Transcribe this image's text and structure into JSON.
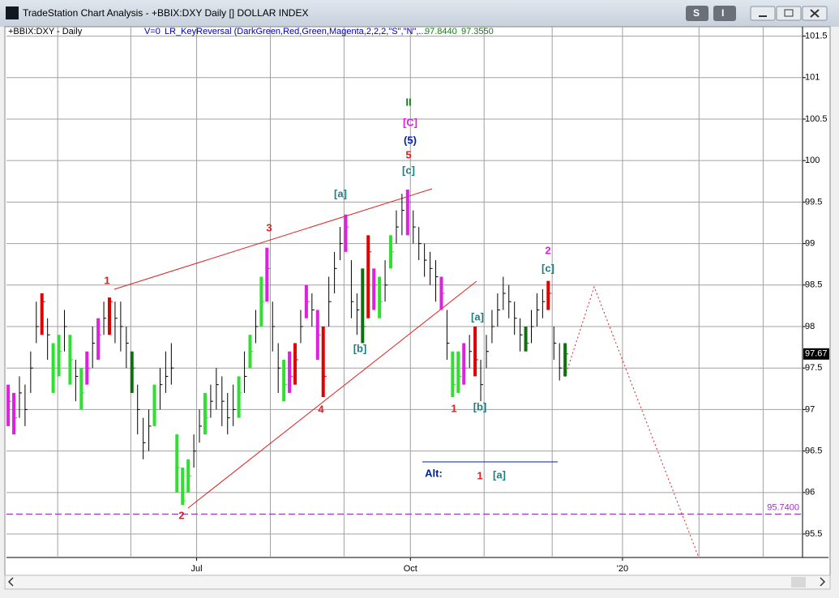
{
  "window": {
    "title": "TradeStation Chart Analysis - +BBIX:DXY Daily [] DOLLAR INDEX",
    "buttons": [
      "S",
      "I"
    ]
  },
  "header": {
    "symbol": "+BBIX:DXY - Daily",
    "volume": "V=0",
    "indicator": "LR_KeyReversal (DarkGreen,Red,Green,Magenta,2,2,2,\"S\",\"N\",...",
    "value1": "97.8440",
    "value2": "97.3550"
  },
  "chart_data": {
    "type": "ohlc",
    "xlim": [
      -0.3,
      141.2
    ],
    "xticks": [
      {
        "value": 33.5,
        "label": "Jul"
      },
      {
        "value": 71.5,
        "label": "Oct"
      },
      {
        "value": 109.2,
        "label": "'20"
      }
    ],
    "xgrid": [
      8.8,
      21.8,
      33.5,
      46.6,
      59.7,
      71.5,
      84.6,
      96.7,
      109.2,
      122.8,
      134.2
    ],
    "ylim": [
      95.217,
      101.613
    ],
    "yticks": [
      95.5,
      96,
      96.5,
      97,
      97.5,
      98,
      98.5,
      99,
      99.5,
      100,
      100.5,
      101,
      101.5
    ],
    "grid": true,
    "color": "#000000",
    "high": [
      97.3,
      97.2,
      97.4,
      97.3,
      97.7,
      98.3,
      98.4,
      98.1,
      97.8,
      97.9,
      98.2,
      97.9,
      97.6,
      97.5,
      97.7,
      98.0,
      98.1,
      98.3,
      98.35,
      98.3,
      98.3,
      98.0,
      97.7,
      97.3,
      96.9,
      97.0,
      97.3,
      97.5,
      97.7,
      97.8,
      96.7,
      96.3,
      96.4,
      96.7,
      97.0,
      97.2,
      97.3,
      97.5,
      97.4,
      97.2,
      97.3,
      97.4,
      97.7,
      97.9,
      98.2,
      98.6,
      98.95,
      98.3,
      97.8,
      97.6,
      97.7,
      97.8,
      98.2,
      98.5,
      98.4,
      98.2,
      98.0,
      98.6,
      98.9,
      99.2,
      99.35,
      98.8,
      98.4,
      98.7,
      99.1,
      98.7,
      98.6,
      98.8,
      99.1,
      99.4,
      99.6,
      99.65,
      99.4,
      99.2,
      99.0,
      98.9,
      98.8,
      98.6,
      98.2,
      97.7,
      97.7,
      97.8,
      97.9,
      98.0,
      97.6,
      97.9,
      98.2,
      98.4,
      98.6,
      98.5,
      98.3,
      98.1,
      98.0,
      98.2,
      98.4,
      98.45,
      98.55,
      98.0,
      97.8,
      97.8
    ],
    "low": [
      96.8,
      96.7,
      96.9,
      96.8,
      97.2,
      97.8,
      97.9,
      97.6,
      97.2,
      97.4,
      97.7,
      97.3,
      97.1,
      97.0,
      97.3,
      97.5,
      97.6,
      97.9,
      97.9,
      97.8,
      97.7,
      97.5,
      97.2,
      96.7,
      96.4,
      96.5,
      96.8,
      97.0,
      97.2,
      97.3,
      96.0,
      95.85,
      96.0,
      96.3,
      96.6,
      96.7,
      96.9,
      97.0,
      96.8,
      96.7,
      96.8,
      96.9,
      97.2,
      97.5,
      97.8,
      98.0,
      98.3,
      97.7,
      97.2,
      97.1,
      97.2,
      97.3,
      97.8,
      98.1,
      98.0,
      97.6,
      97.15,
      98.0,
      98.4,
      98.8,
      98.9,
      98.1,
      97.9,
      97.8,
      98.1,
      98.2,
      98.1,
      98.3,
      98.7,
      99.0,
      99.1,
      99.1,
      99.0,
      98.8,
      98.6,
      98.5,
      98.3,
      98.2,
      97.6,
      97.15,
      97.2,
      97.3,
      97.5,
      97.4,
      97.1,
      97.5,
      97.8,
      98.0,
      98.2,
      98.1,
      97.9,
      97.7,
      97.7,
      97.8,
      98.0,
      98.1,
      98.2,
      97.6,
      97.35,
      97.4
    ],
    "close": [
      97.1,
      96.9,
      97.2,
      97.0,
      97.5,
      98.0,
      98.3,
      97.9,
      97.5,
      97.7,
      98.0,
      97.6,
      97.4,
      97.2,
      97.5,
      97.8,
      97.9,
      98.1,
      98.3,
      98.1,
      98.0,
      97.8,
      97.5,
      97.0,
      96.6,
      96.8,
      97.0,
      97.3,
      97.4,
      97.5,
      96.3,
      95.9,
      96.2,
      96.5,
      96.8,
      96.9,
      97.1,
      97.3,
      97.1,
      96.9,
      97.0,
      97.2,
      97.4,
      97.7,
      98.0,
      98.3,
      98.7,
      98.0,
      97.5,
      97.3,
      97.4,
      97.6,
      98.0,
      98.3,
      98.2,
      97.9,
      97.4,
      98.3,
      98.7,
      99.0,
      99.2,
      98.3,
      98.2,
      98.0,
      98.9,
      98.5,
      98.3,
      98.5,
      98.9,
      99.2,
      99.4,
      99.5,
      99.2,
      99.0,
      98.8,
      98.7,
      98.6,
      98.4,
      97.8,
      97.3,
      97.4,
      97.5,
      97.7,
      97.6,
      97.3,
      97.7,
      98.0,
      98.2,
      98.4,
      98.3,
      98.1,
      97.9,
      97.8,
      98.0,
      98.2,
      98.3,
      98.4,
      97.8,
      97.5,
      97.67
    ],
    "highlights": [
      {
        "index": 0,
        "color": "#e020e0"
      },
      {
        "index": 1,
        "color": "#e020e0"
      },
      {
        "index": 6,
        "color": "#e00000"
      },
      {
        "index": 8,
        "color": "#30e030"
      },
      {
        "index": 9,
        "color": "#30e030"
      },
      {
        "index": 11,
        "color": "#30e030"
      },
      {
        "index": 13,
        "color": "#30e030"
      },
      {
        "index": 14,
        "color": "#e020e0"
      },
      {
        "index": 16,
        "color": "#e020e0"
      },
      {
        "index": 18,
        "color": "#e00000"
      },
      {
        "index": 22,
        "color": "#107010"
      },
      {
        "index": 26,
        "color": "#30e030"
      },
      {
        "index": 30,
        "color": "#30e030"
      },
      {
        "index": 31,
        "color": "#30e030"
      },
      {
        "index": 32,
        "color": "#30e030"
      },
      {
        "index": 35,
        "color": "#30e030"
      },
      {
        "index": 41,
        "color": "#30e030"
      },
      {
        "index": 43,
        "color": "#30e030"
      },
      {
        "index": 45,
        "color": "#30e030"
      },
      {
        "index": 46,
        "color": "#e020e0"
      },
      {
        "index": 49,
        "color": "#30e030"
      },
      {
        "index": 50,
        "color": "#e020e0"
      },
      {
        "index": 51,
        "color": "#e00000"
      },
      {
        "index": 53,
        "color": "#e020e0"
      },
      {
        "index": 55,
        "color": "#e020e0"
      },
      {
        "index": 56,
        "color": "#e00000"
      },
      {
        "index": 60,
        "color": "#e020e0"
      },
      {
        "index": 63,
        "color": "#107010"
      },
      {
        "index": 64,
        "color": "#e00000"
      },
      {
        "index": 65,
        "color": "#e020e0"
      },
      {
        "index": 66,
        "color": "#30e030"
      },
      {
        "index": 68,
        "color": "#30e030"
      },
      {
        "index": 71,
        "color": "#e020e0"
      },
      {
        "index": 77,
        "color": "#e020e0"
      },
      {
        "index": 79,
        "color": "#30e030"
      },
      {
        "index": 80,
        "color": "#30e030"
      },
      {
        "index": 81,
        "color": "#e020e0"
      },
      {
        "index": 83,
        "color": "#e00000"
      },
      {
        "index": 92,
        "color": "#107010"
      },
      {
        "index": 96,
        "color": "#e00000"
      },
      {
        "index": 99,
        "color": "#107010"
      }
    ],
    "reference_line": {
      "value": 95.74,
      "label": "95.7400",
      "color": "#9a30c0"
    },
    "last_price": {
      "value": 97.67,
      "label": "97.67"
    },
    "annotations": [
      {
        "text": "1",
        "color": "#e02020"
      },
      {
        "text": "3",
        "color": "#e02020"
      },
      {
        "text": "[a]",
        "color": "#208080"
      },
      {
        "text": "5",
        "color": "#e02020"
      },
      {
        "text": "[c]",
        "color": "#208080"
      },
      {
        "text": "(5)",
        "color": "#0020c0"
      },
      {
        "text": "[C]",
        "color": "#e020e0"
      },
      {
        "text": "II",
        "color": "#108010"
      },
      {
        "text": "4",
        "color": "#e02020"
      },
      {
        "text": "2",
        "color": "#e02020"
      },
      {
        "text": "[b]",
        "color": "#208080"
      },
      {
        "text": "1",
        "color": "#e02020"
      },
      {
        "text": "[a]",
        "color": "#208080"
      },
      {
        "text": "[b]",
        "color": "#208080"
      },
      {
        "text": "2",
        "color": "#e020e0"
      },
      {
        "text": "[c]",
        "color": "#208080"
      },
      {
        "text": "Alt:",
        "color": "#0020a0"
      },
      {
        "text": "1",
        "color": "#e02020"
      },
      {
        "text": "[a]",
        "color": "#208080"
      }
    ]
  }
}
